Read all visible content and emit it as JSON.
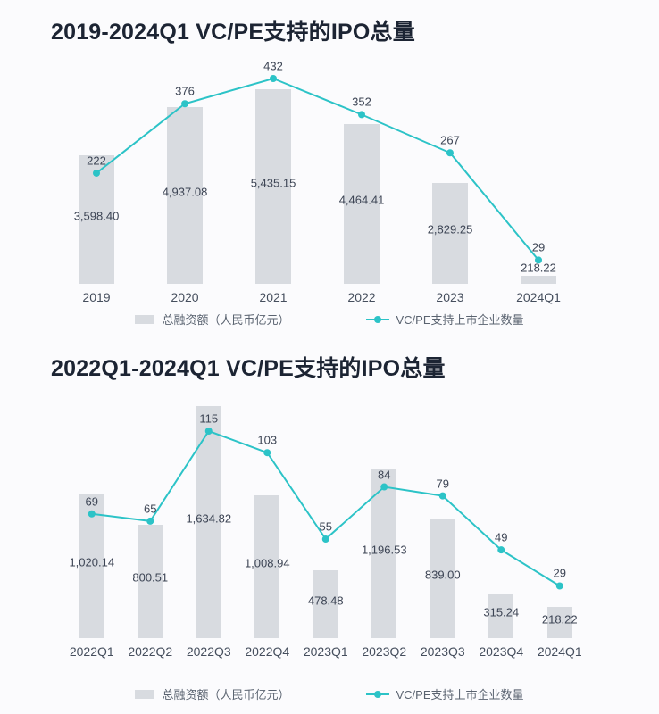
{
  "page": {
    "background": "#fbfbfd"
  },
  "colors": {
    "bar": "#d8dbe0",
    "line": "#2cc3c7",
    "title": "#1c2433",
    "value_label": "#3c4454",
    "axis_label": "#454e5d",
    "legend_text": "#5a6370"
  },
  "chart_data": [
    {
      "type": "bar+line",
      "title": "2019-2024Q1 VC/PE支持的IPO总量",
      "categories": [
        "2019",
        "2020",
        "2021",
        "2022",
        "2023",
        "2024Q1"
      ],
      "series": [
        {
          "name": "总融资额（人民币亿元）",
          "type": "bar",
          "values": [
            3598.4,
            4937.08,
            5435.15,
            4464.41,
            2829.25,
            218.22
          ],
          "value_labels": [
            "3,598.40",
            "4,937.08",
            "5,435.15",
            "4,464.41",
            "2,829.25",
            "218.22"
          ]
        },
        {
          "name": "VC/PE支持上市企业数量",
          "type": "line",
          "values": [
            222,
            376,
            432,
            352,
            267,
            29
          ],
          "value_labels": [
            "222",
            "376",
            "432",
            "352",
            "267",
            "29"
          ]
        }
      ],
      "legend": [
        "总融资额（人民币亿元）",
        "VC/PE支持上市企业数量"
      ],
      "legend_position": "bottom",
      "grid": false,
      "bar_ylim": [
        0,
        5435.15
      ],
      "line_ylim": [
        0,
        432
      ]
    },
    {
      "type": "bar+line",
      "title": "2022Q1-2024Q1 VC/PE支持的IPO总量",
      "categories": [
        "2022Q1",
        "2022Q2",
        "2022Q3",
        "2022Q4",
        "2023Q1",
        "2023Q2",
        "2023Q3",
        "2023Q4",
        "2024Q1"
      ],
      "series": [
        {
          "name": "总融资额（人民币亿元）",
          "type": "bar",
          "values": [
            1020.14,
            800.51,
            1634.82,
            1008.94,
            478.48,
            1196.53,
            839.0,
            315.24,
            218.22
          ],
          "value_labels": [
            "1,020.14",
            "800.51",
            "1,634.82",
            "1,008.94",
            "478.48",
            "1,196.53",
            "839.00",
            "315.24",
            "218.22"
          ]
        },
        {
          "name": "VC/PE支持上市企业数量",
          "type": "line",
          "values": [
            69,
            65,
            115,
            103,
            55,
            84,
            79,
            49,
            29
          ],
          "value_labels": [
            "69",
            "65",
            "115",
            "103",
            "55",
            "84",
            "79",
            "49",
            "29"
          ]
        }
      ],
      "legend": [
        "总融资额（人民币亿元）",
        "VC/PE支持上市企业数量"
      ],
      "legend_position": "bottom",
      "grid": false,
      "bar_ylim": [
        0,
        1634.82
      ],
      "line_ylim": [
        0,
        115
      ]
    }
  ]
}
